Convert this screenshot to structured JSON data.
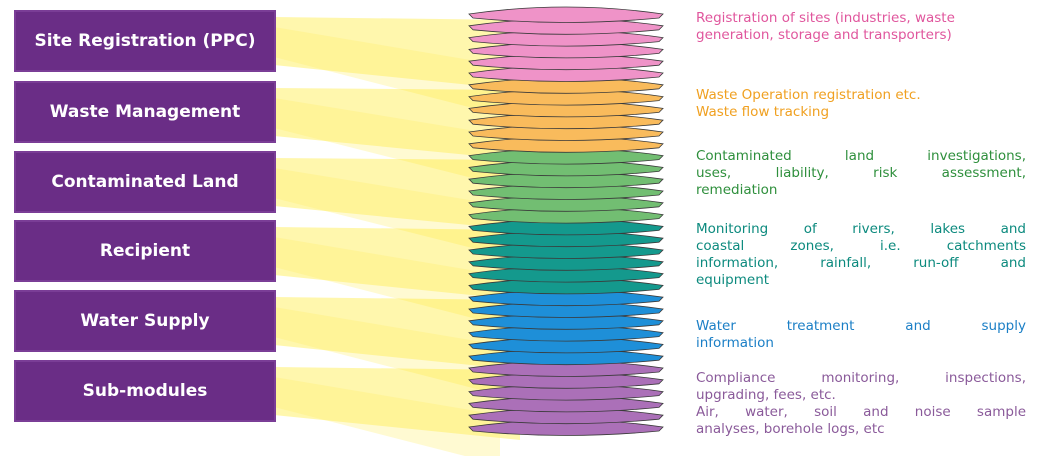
{
  "modules": [
    "Site Registration (PPC)",
    "Waste Management",
    "Contaminated Land",
    "Recipient",
    "Water Supply",
    "Sub-modules"
  ],
  "descriptions": [
    [
      [
        "Registration of sites (industries, waste",
        "generation, storage and transporters)"
      ]
    ],
    [
      [
        "Waste Operation registration etc.",
        "Waste flow tracking"
      ]
    ],
    [
      [
        "Contaminated land investigations,",
        "uses, liability, risk assessment,",
        "remediation"
      ]
    ],
    [
      [
        "Monitoring of rivers, lakes and",
        "coastal zones, i.e. catchments",
        "information, rainfall, run-off and",
        "equipment"
      ]
    ],
    [
      [
        "Water treatment and supply",
        "information"
      ]
    ],
    [
      [
        "Compliance monitoring, inspections,",
        "upgrading, fees, etc."
      ],
      [
        "Air, water, soil and noise sample",
        "analyses, borehole logs, etc"
      ]
    ]
  ]
}
